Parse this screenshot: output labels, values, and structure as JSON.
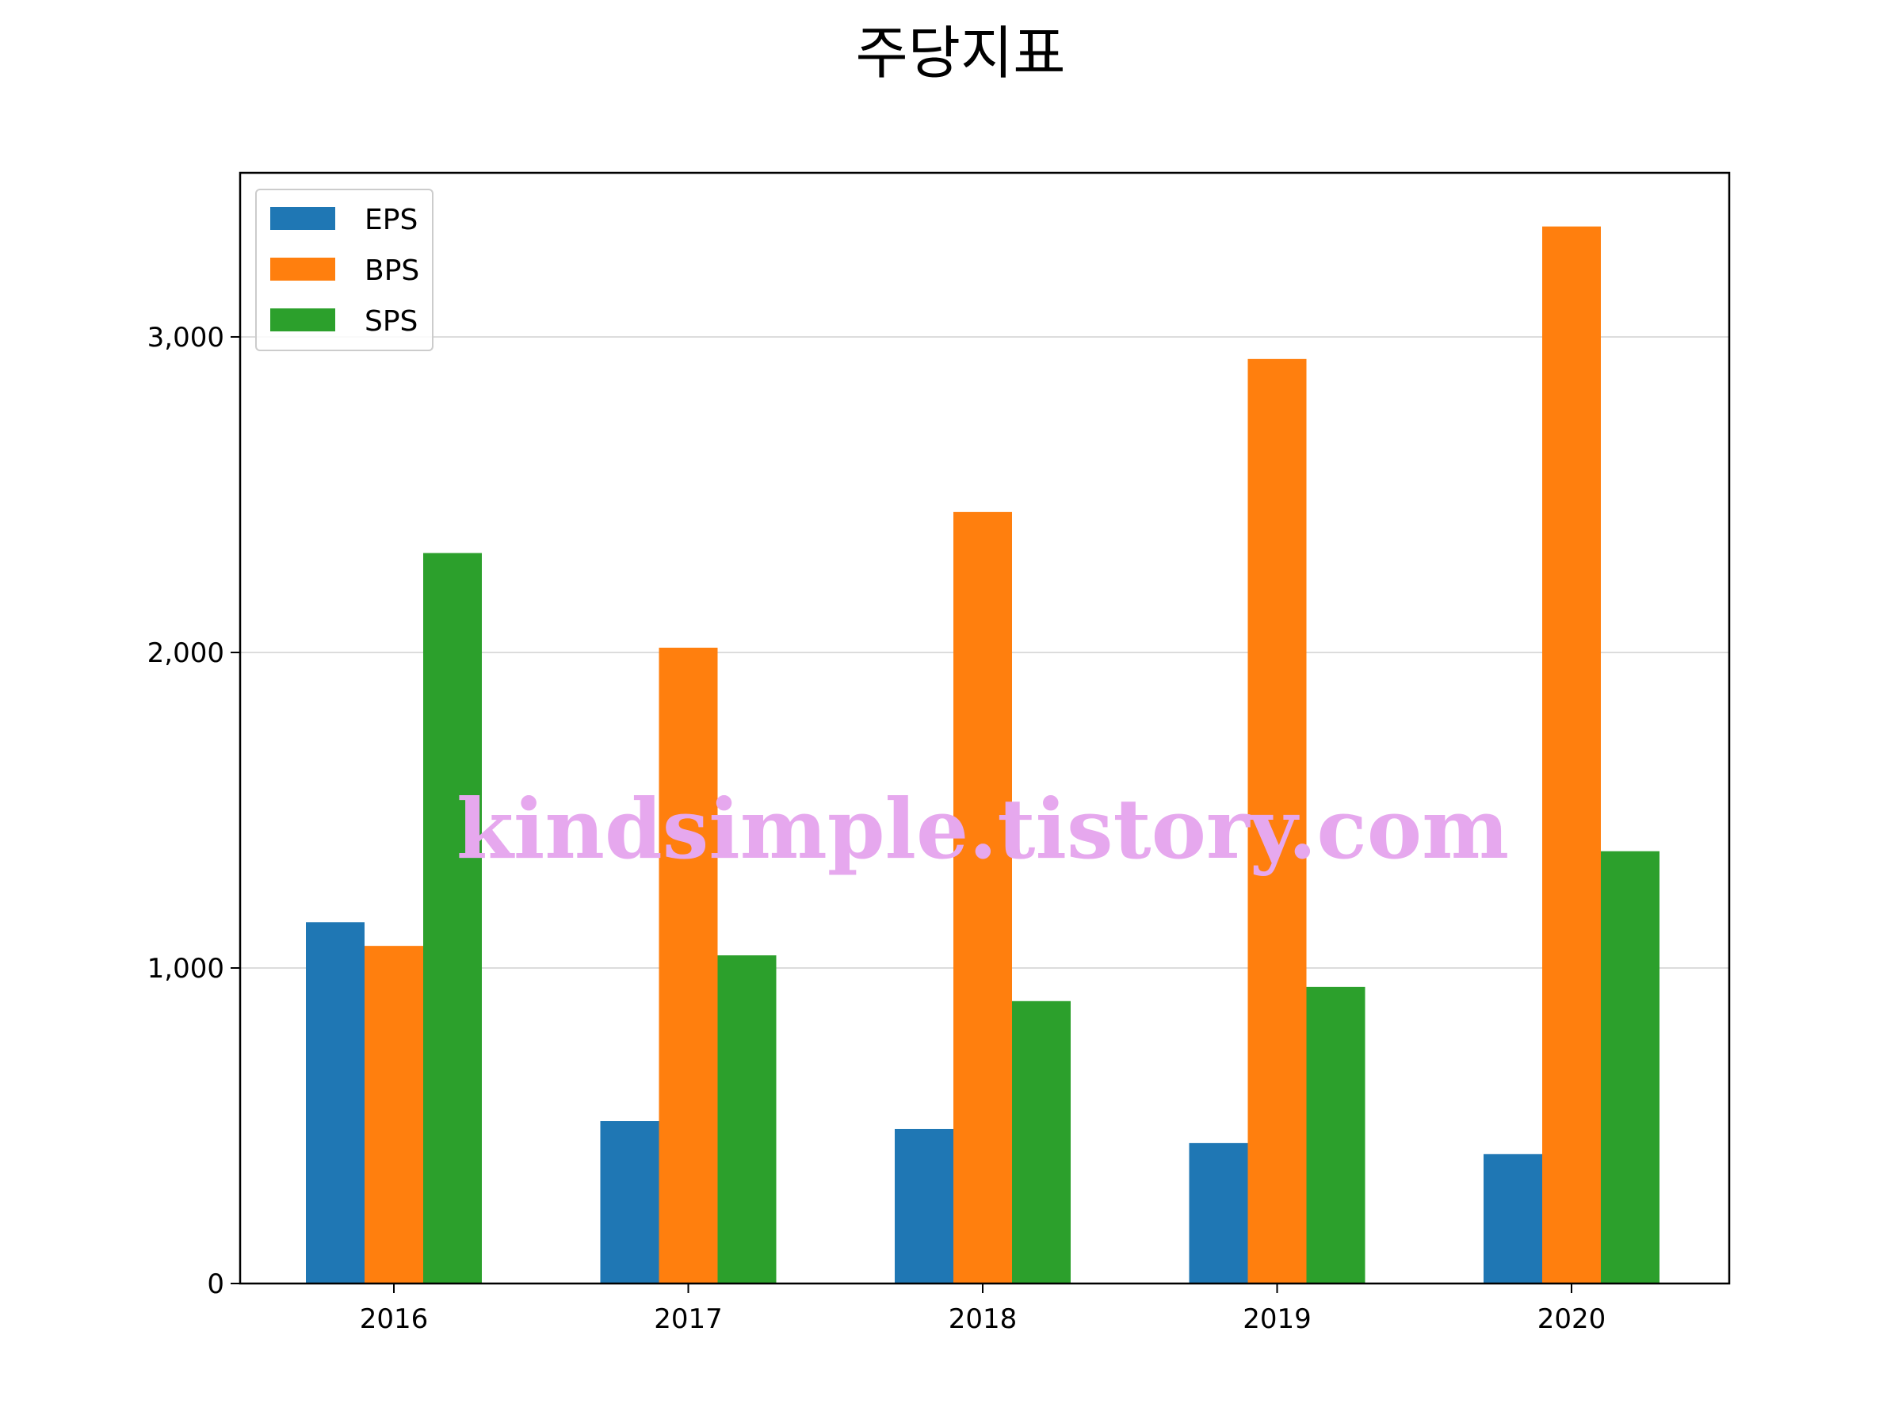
{
  "chart_data": {
    "type": "bar",
    "title": "주당지표",
    "xlabel": "",
    "ylabel": "",
    "categories": [
      "2016",
      "2017",
      "2018",
      "2019",
      "2020"
    ],
    "series": [
      {
        "name": "EPS",
        "color": "#1f77b4",
        "values": [
          1145,
          515,
          490,
          445,
          410
        ]
      },
      {
        "name": "BPS",
        "color": "#ff7f0e",
        "values": [
          1070,
          2015,
          2445,
          2930,
          3350
        ]
      },
      {
        "name": "SPS",
        "color": "#2ca02c",
        "values": [
          2315,
          1040,
          895,
          940,
          1370
        ]
      }
    ],
    "ylim": [
      0,
      3520
    ],
    "yticks": [
      0,
      1000,
      2000,
      3000
    ],
    "ytick_labels": [
      "0",
      "1,000",
      "2,000",
      "3,000"
    ],
    "grid": "y",
    "legend": "upper-left",
    "watermark": "kindsimple.tistory.com"
  }
}
